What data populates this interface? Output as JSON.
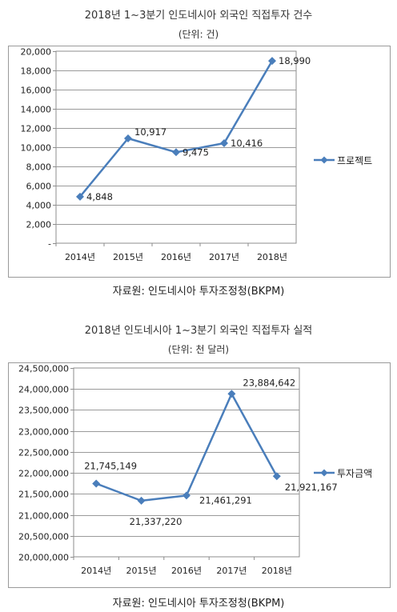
{
  "chart_data": [
    {
      "type": "line",
      "title": "2018년 1~3분기 인도네시아 외국인 직접투자 건수",
      "subtitle": "(단위: 건)",
      "source": "자료원: 인도네시아 투자조정청(BKPM)",
      "categories": [
        "2014년",
        "2015년",
        "2016년",
        "2017년",
        "2018년"
      ],
      "series": [
        {
          "name": "프로젝트",
          "values": [
            4848,
            10917,
            9475,
            10416,
            18990
          ]
        }
      ],
      "data_labels": [
        "4,848",
        "10,917",
        "9,475",
        "10,416",
        "18,990"
      ],
      "ylim": [
        0,
        20000
      ],
      "yticks": [
        0,
        2000,
        4000,
        6000,
        8000,
        10000,
        12000,
        14000,
        16000,
        18000,
        20000
      ],
      "ytick_labels": [
        "-",
        "2,000",
        "4,000",
        "6,000",
        "8,000",
        "10,000",
        "12,000",
        "14,000",
        "16,000",
        "18,000",
        "20,000"
      ],
      "grid": true,
      "legend": "right",
      "color": "#4a7ebb"
    },
    {
      "type": "line",
      "title": "2018년 인도네시아 1~3분기 외국인 직접투자 실적",
      "subtitle": "(단위: 천 달러)",
      "source": "자료원: 인도네시아 투자조정청(BKPM)",
      "categories": [
        "2014년",
        "2015년",
        "2016년",
        "2017년",
        "2018년"
      ],
      "series": [
        {
          "name": "투자금액",
          "values": [
            21745149,
            21337220,
            21461291,
            23884642,
            21921167
          ]
        }
      ],
      "data_labels": [
        "21,745,149",
        "21,337,220",
        "21,461,291",
        "23,884,642",
        "21,921,167"
      ],
      "ylim": [
        20000000,
        24500000
      ],
      "yticks": [
        20000000,
        20500000,
        21000000,
        21500000,
        22000000,
        22500000,
        23000000,
        23500000,
        24000000,
        24500000
      ],
      "ytick_labels": [
        "20,000,000",
        "20,500,000",
        "21,000,000",
        "21,500,000",
        "22,000,000",
        "22,500,000",
        "23,000,000",
        "23,500,000",
        "24,000,000",
        "24,500,000"
      ],
      "grid": true,
      "legend": "right",
      "color": "#4a7ebb"
    }
  ]
}
